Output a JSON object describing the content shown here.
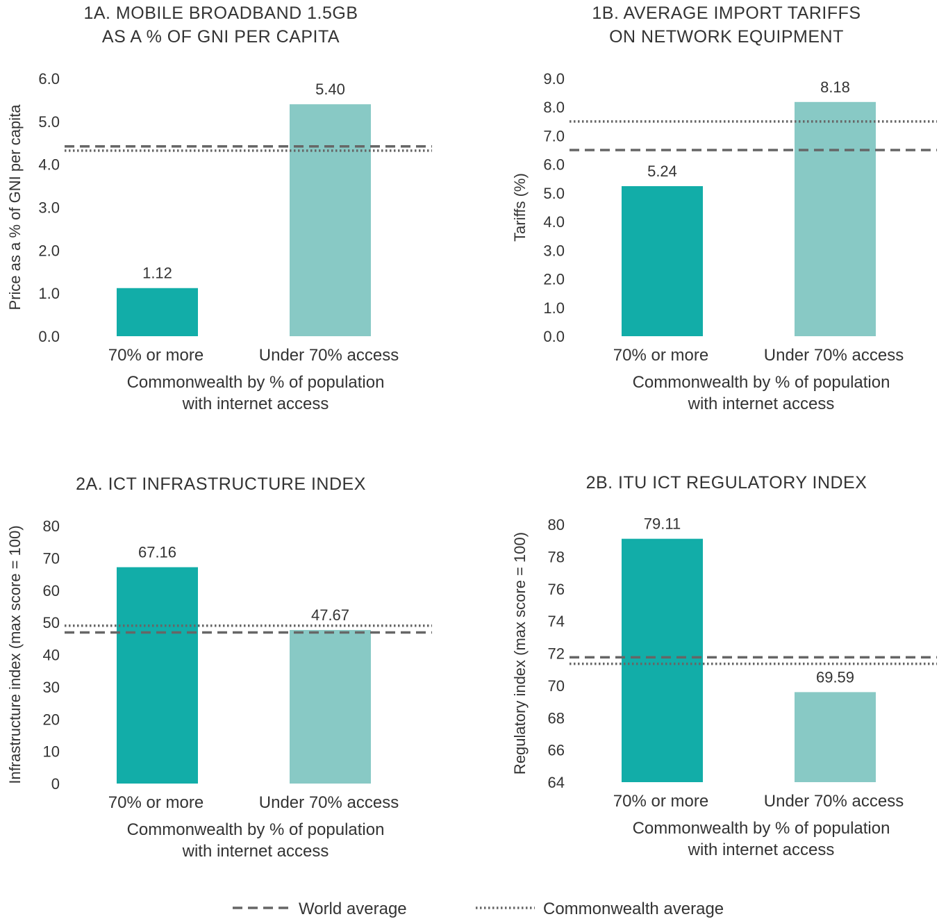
{
  "colors": {
    "bar_high_access": "#12ada8",
    "bar_low_access": "#88c9c5",
    "reference_line": "#666666"
  },
  "legend": {
    "world": "World average",
    "commonwealth": "Commonwealth average"
  },
  "chart_data": [
    {
      "id": "1A",
      "type": "bar",
      "title_lines": [
        "1A. MOBILE BROADBAND 1.5GB",
        "AS A % OF GNI PER CAPITA"
      ],
      "ylabel": "Price as a % of GNI per capita",
      "xlabel_lines": [
        "Commonwealth by % of population",
        "with internet access"
      ],
      "categories": [
        "70% or more",
        "Under 70% access"
      ],
      "values": [
        1.12,
        5.4
      ],
      "value_labels": [
        "1.12",
        "5.40"
      ],
      "yticks": [
        "0.0",
        "1.0",
        "2.0",
        "3.0",
        "4.0",
        "5.0",
        "6.0"
      ],
      "ylim": [
        0,
        6
      ],
      "world_average": 4.42,
      "commonwealth_average": 4.32
    },
    {
      "id": "1B",
      "type": "bar",
      "title_lines": [
        "1B. AVERAGE IMPORT TARIFFS",
        "ON NETWORK EQUIPMENT"
      ],
      "ylabel": "Tariffs (%)",
      "xlabel_lines": [
        "Commonwealth by % of population",
        "with internet access"
      ],
      "categories": [
        "70% or more",
        "Under 70% access"
      ],
      "values": [
        5.24,
        8.18
      ],
      "value_labels": [
        "5.24",
        "8.18"
      ],
      "yticks": [
        "0.0",
        "1.0",
        "2.0",
        "3.0",
        "4.0",
        "5.0",
        "6.0",
        "7.0",
        "8.0",
        "9.0"
      ],
      "ylim": [
        0,
        9
      ],
      "world_average": 6.5,
      "commonwealth_average": 7.5
    },
    {
      "id": "2A",
      "type": "bar",
      "title_lines": [
        "2A. ICT INFRASTRUCTURE INDEX"
      ],
      "ylabel": "Infrastructure index (max score = 100)",
      "xlabel_lines": [
        "Commonwealth by % of population",
        "with internet access"
      ],
      "categories": [
        "70% or more",
        "Under 70% access"
      ],
      "values": [
        67.16,
        47.67
      ],
      "value_labels": [
        "67.16",
        "47.67"
      ],
      "yticks": [
        "0",
        "10",
        "20",
        "30",
        "40",
        "50",
        "60",
        "70",
        "80"
      ],
      "ylim": [
        0,
        80
      ],
      "world_average": 46.9,
      "commonwealth_average": 49.0
    },
    {
      "id": "2B",
      "type": "bar",
      "title_lines": [
        "2B. ITU ICT REGULATORY INDEX"
      ],
      "ylabel": "Regulatory index (max score = 100)",
      "xlabel_lines": [
        "Commonwealth by % of population",
        "with internet access"
      ],
      "categories": [
        "70% or more",
        "Under 70% access"
      ],
      "values": [
        79.11,
        69.59
      ],
      "value_labels": [
        "79.11",
        "69.59"
      ],
      "yticks": [
        "64",
        "66",
        "68",
        "70",
        "72",
        "74",
        "76",
        "78",
        "80"
      ],
      "ylim": [
        64,
        80
      ],
      "world_average": 71.75,
      "commonwealth_average": 71.35
    }
  ]
}
